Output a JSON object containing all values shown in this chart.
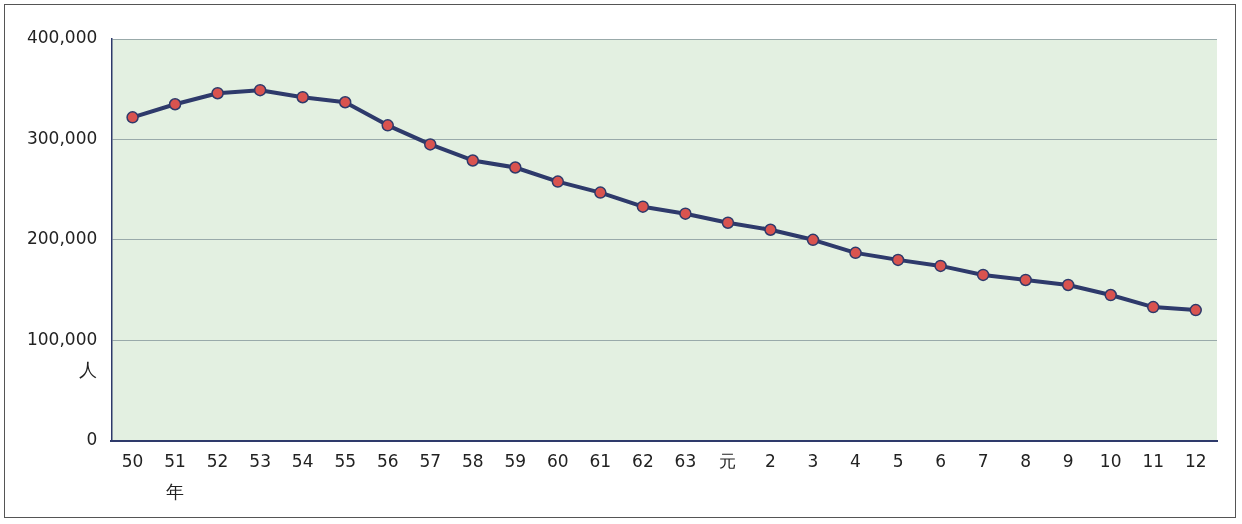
{
  "chart_data": {
    "type": "line",
    "xlabel": "年",
    "ylabel": "人",
    "categories": [
      "50",
      "51",
      "52",
      "53",
      "54",
      "55",
      "56",
      "57",
      "58",
      "59",
      "60",
      "61",
      "62",
      "63",
      "元",
      "2",
      "3",
      "4",
      "5",
      "6",
      "7",
      "8",
      "9",
      "10",
      "11",
      "12"
    ],
    "series": [
      {
        "color": "#2e3a6b",
        "colors": [
          "#d9534f",
          "#d9534f",
          "#d9534f",
          "#d9534f",
          "#d9534f",
          "#d9534f",
          "#d9534f",
          "#d9534f",
          "#d9534f",
          "#d9534f",
          "#d9534f",
          "#d9534f",
          "#d9534f",
          "#d9534f",
          "#d9534f",
          "#d9534f",
          "#d9534f",
          "#d9534f",
          "#d9534f",
          "#d9534f",
          "#d9534f",
          "#d9534f",
          "#d9534f",
          "#d9534f",
          "#d9534f",
          "#d9534f"
        ],
        "values": [
          322000,
          335000,
          346000,
          349000,
          342000,
          337000,
          314000,
          295000,
          279000,
          272000,
          258000,
          247000,
          233000,
          226000,
          217000,
          210000,
          200000,
          187000,
          180000,
          174000,
          165000,
          160000,
          155000,
          145000,
          133000,
          130000
        ]
      }
    ],
    "ylim": [
      0,
      400000
    ],
    "yticks": [
      {
        "value": 0,
        "label": "0"
      },
      {
        "value": 100000,
        "label": "100,000"
      },
      {
        "value": 200000,
        "label": "200,000"
      },
      {
        "value": 300000,
        "label": "300,000"
      },
      {
        "value": 400000,
        "label": "400,000"
      }
    ],
    "grid": "y",
    "legend": false,
    "marker": "circle",
    "line_style": "solid"
  }
}
